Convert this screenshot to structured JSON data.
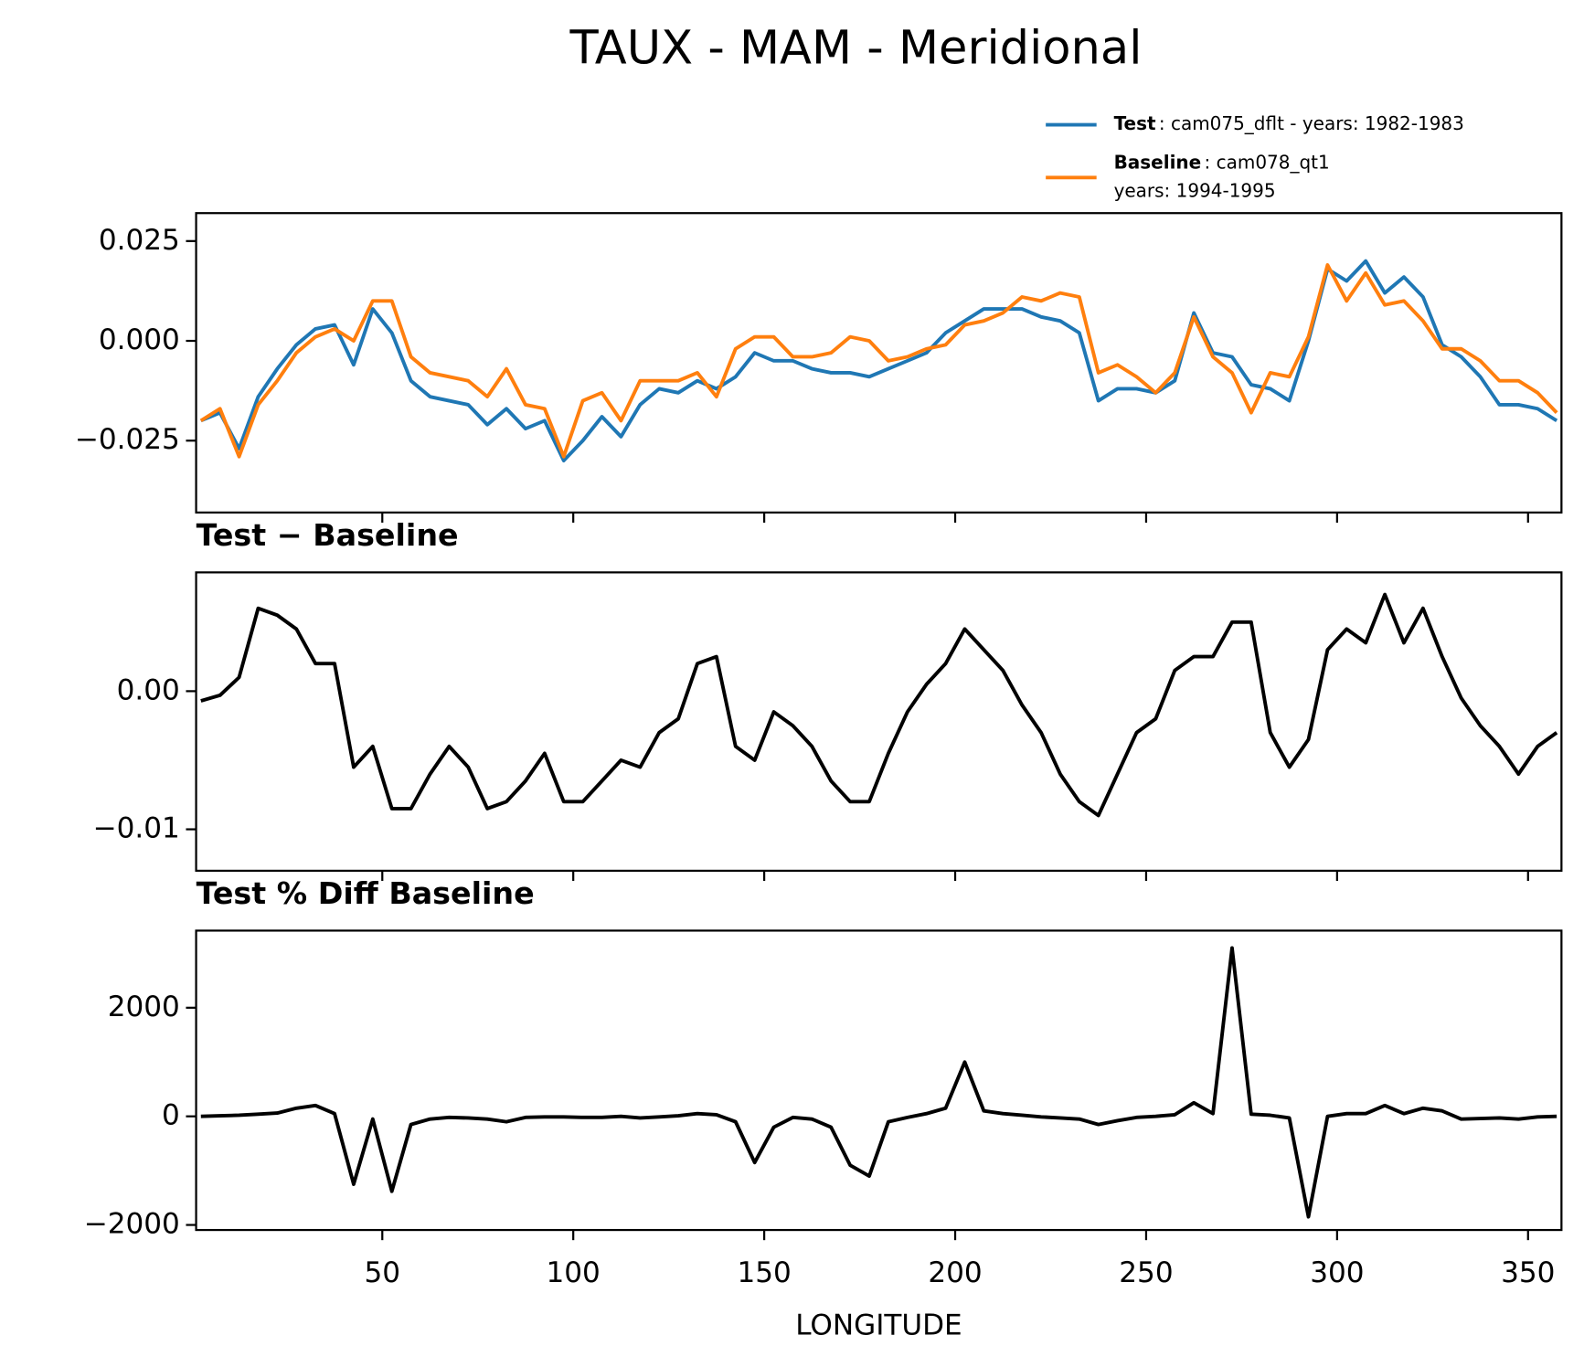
{
  "chart_data": [
    {
      "type": "line",
      "title": "TAUX - MAM - Meridional",
      "x": [
        2.5,
        7.5,
        12.5,
        17.5,
        22.5,
        27.5,
        32.5,
        37.5,
        42.5,
        47.5,
        52.5,
        57.5,
        62.5,
        67.5,
        72.5,
        77.5,
        82.5,
        87.5,
        92.5,
        97.5,
        102.5,
        107.5,
        112.5,
        117.5,
        122.5,
        127.5,
        132.5,
        137.5,
        142.5,
        147.5,
        152.5,
        157.5,
        162.5,
        167.5,
        172.5,
        177.5,
        182.5,
        187.5,
        192.5,
        197.5,
        202.5,
        207.5,
        212.5,
        217.5,
        222.5,
        227.5,
        232.5,
        237.5,
        242.5,
        247.5,
        252.5,
        257.5,
        262.5,
        267.5,
        272.5,
        277.5,
        282.5,
        287.5,
        292.5,
        297.5,
        302.5,
        307.5,
        312.5,
        317.5,
        322.5,
        327.5,
        332.5,
        337.5,
        342.5,
        347.5,
        352.5,
        357.5
      ],
      "series": [
        {
          "name": "Test",
          "description": [
            ": cam075_dflt - years: 1982-1983"
          ],
          "color": "#1f77b4",
          "values": [
            -0.02,
            -0.018,
            -0.027,
            -0.014,
            -0.007,
            -0.001,
            0.003,
            0.004,
            -0.006,
            0.008,
            0.002,
            -0.01,
            -0.014,
            -0.015,
            -0.016,
            -0.021,
            -0.017,
            -0.022,
            -0.02,
            -0.03,
            -0.025,
            -0.019,
            -0.024,
            -0.016,
            -0.012,
            -0.013,
            -0.01,
            -0.012,
            -0.009,
            -0.003,
            -0.005,
            -0.005,
            -0.007,
            -0.008,
            -0.008,
            -0.009,
            -0.007,
            -0.005,
            -0.003,
            0.002,
            0.005,
            0.008,
            0.008,
            0.008,
            0.006,
            0.005,
            0.002,
            -0.015,
            -0.012,
            -0.012,
            -0.013,
            -0.01,
            0.007,
            -0.003,
            -0.004,
            -0.011,
            -0.012,
            -0.015,
            0.0,
            0.018,
            0.015,
            0.02,
            0.012,
            0.016,
            0.011,
            -0.001,
            -0.004,
            -0.009,
            -0.016,
            -0.016,
            -0.017,
            -0.02
          ]
        },
        {
          "name": "Baseline",
          "description": [
            ": cam078_qt1",
            "years: 1994-1995"
          ],
          "color": "#ff7f0e",
          "values": [
            -0.02,
            -0.017,
            -0.029,
            -0.016,
            -0.01,
            -0.003,
            0.001,
            0.003,
            0.0,
            0.01,
            0.01,
            -0.004,
            -0.008,
            -0.009,
            -0.01,
            -0.014,
            -0.007,
            -0.016,
            -0.017,
            -0.029,
            -0.015,
            -0.013,
            -0.02,
            -0.01,
            -0.01,
            -0.01,
            -0.008,
            -0.014,
            -0.002,
            0.001,
            0.001,
            -0.004,
            -0.004,
            -0.003,
            0.001,
            0.0,
            -0.005,
            -0.004,
            -0.002,
            -0.001,
            0.004,
            0.005,
            0.007,
            0.011,
            0.01,
            0.012,
            0.011,
            -0.008,
            -0.006,
            -0.009,
            -0.013,
            -0.008,
            0.006,
            -0.004,
            -0.008,
            -0.018,
            -0.008,
            -0.009,
            0.001,
            0.019,
            0.01,
            0.017,
            0.009,
            0.01,
            0.005,
            -0.002,
            -0.002,
            -0.005,
            -0.01,
            -0.01,
            -0.013,
            -0.018
          ]
        }
      ],
      "xlim": [
        1.25,
        358.75
      ],
      "xticks": [
        50,
        100,
        150,
        200,
        250,
        300,
        350
      ],
      "ylim": [
        -0.043,
        0.032
      ],
      "yticks": [
        {
          "value": 0.025,
          "label": "0.025"
        },
        {
          "value": 0,
          "label": "0.000"
        },
        {
          "value": -0.025,
          "label": "−0.025"
        }
      ]
    },
    {
      "type": "line",
      "title": "Test − Baseline",
      "x": [
        2.5,
        7.5,
        12.5,
        17.5,
        22.5,
        27.5,
        32.5,
        37.5,
        42.5,
        47.5,
        52.5,
        57.5,
        62.5,
        67.5,
        72.5,
        77.5,
        82.5,
        87.5,
        92.5,
        97.5,
        102.5,
        107.5,
        112.5,
        117.5,
        122.5,
        127.5,
        132.5,
        137.5,
        142.5,
        147.5,
        152.5,
        157.5,
        162.5,
        167.5,
        172.5,
        177.5,
        182.5,
        187.5,
        192.5,
        197.5,
        202.5,
        207.5,
        212.5,
        217.5,
        222.5,
        227.5,
        232.5,
        237.5,
        242.5,
        247.5,
        252.5,
        257.5,
        262.5,
        267.5,
        272.5,
        277.5,
        282.5,
        287.5,
        292.5,
        297.5,
        302.5,
        307.5,
        312.5,
        317.5,
        322.5,
        327.5,
        332.5,
        337.5,
        342.5,
        347.5,
        352.5,
        357.5
      ],
      "color": "#000000",
      "values": [
        -0.0007,
        -0.0003,
        0.001,
        0.006,
        0.0055,
        0.0045,
        0.002,
        0.002,
        -0.0055,
        -0.004,
        -0.0085,
        -0.0085,
        -0.006,
        -0.004,
        -0.0055,
        -0.0085,
        -0.008,
        -0.0065,
        -0.0045,
        -0.008,
        -0.008,
        -0.0065,
        -0.005,
        -0.0055,
        -0.003,
        -0.002,
        0.002,
        0.0025,
        -0.004,
        -0.005,
        -0.0015,
        -0.0025,
        -0.004,
        -0.0065,
        -0.008,
        -0.008,
        -0.0045,
        -0.0015,
        0.0005,
        0.002,
        0.0045,
        0.003,
        0.0015,
        -0.001,
        -0.003,
        -0.006,
        -0.008,
        -0.009,
        -0.006,
        -0.003,
        -0.002,
        0.0015,
        0.0025,
        0.0025,
        0.005,
        0.005,
        -0.003,
        -0.0055,
        -0.0035,
        0.003,
        0.0045,
        0.0035,
        0.007,
        0.0035,
        0.006,
        0.0025,
        -0.0005,
        -0.0025,
        -0.004,
        -0.006,
        -0.004,
        -0.003
      ],
      "xlim": [
        1.25,
        358.75
      ],
      "xticks": [
        50,
        100,
        150,
        200,
        250,
        300,
        350
      ],
      "ylim": [
        -0.013,
        0.0086
      ],
      "yticks": [
        {
          "value": 0,
          "label": "0.00"
        },
        {
          "value": -0.01,
          "label": "−0.01"
        }
      ]
    },
    {
      "type": "line",
      "title": "Test % Diff Baseline",
      "xlabel": "LONGITUDE",
      "x": [
        2.5,
        7.5,
        12.5,
        17.5,
        22.5,
        27.5,
        32.5,
        37.5,
        42.5,
        47.5,
        52.5,
        57.5,
        62.5,
        67.5,
        72.5,
        77.5,
        82.5,
        87.5,
        92.5,
        97.5,
        102.5,
        107.5,
        112.5,
        117.5,
        122.5,
        127.5,
        132.5,
        137.5,
        142.5,
        147.5,
        152.5,
        157.5,
        162.5,
        167.5,
        172.5,
        177.5,
        182.5,
        187.5,
        192.5,
        197.5,
        202.5,
        207.5,
        212.5,
        217.5,
        222.5,
        227.5,
        232.5,
        237.5,
        242.5,
        247.5,
        252.5,
        257.5,
        262.5,
        267.5,
        272.5,
        277.5,
        282.5,
        287.5,
        292.5,
        297.5,
        302.5,
        307.5,
        312.5,
        317.5,
        322.5,
        327.5,
        332.5,
        337.5,
        342.5,
        347.5,
        352.5,
        357.5
      ],
      "color": "#000000",
      "values": [
        0,
        10,
        20,
        40,
        60,
        150,
        200,
        50,
        -1250,
        -50,
        -1380,
        -150,
        -50,
        -20,
        -30,
        -50,
        -100,
        -20,
        -10,
        -10,
        -20,
        -20,
        0,
        -30,
        -10,
        10,
        50,
        30,
        -100,
        -850,
        -200,
        -20,
        -50,
        -200,
        -900,
        -1100,
        -100,
        -20,
        50,
        150,
        1000,
        100,
        50,
        20,
        -10,
        -30,
        -50,
        -150,
        -80,
        -20,
        0,
        30,
        250,
        50,
        3100,
        40,
        20,
        -30,
        -1850,
        0,
        50,
        50,
        200,
        50,
        150,
        100,
        -50,
        -40,
        -30,
        -50,
        -10,
        0
      ],
      "xlim": [
        1.25,
        358.75
      ],
      "xticks": [
        50,
        100,
        150,
        200,
        250,
        300,
        350
      ],
      "ylim": [
        -2093,
        3420
      ],
      "yticks": [
        2000,
        0,
        {
          "value": -2000,
          "label": "−2000"
        }
      ]
    }
  ]
}
